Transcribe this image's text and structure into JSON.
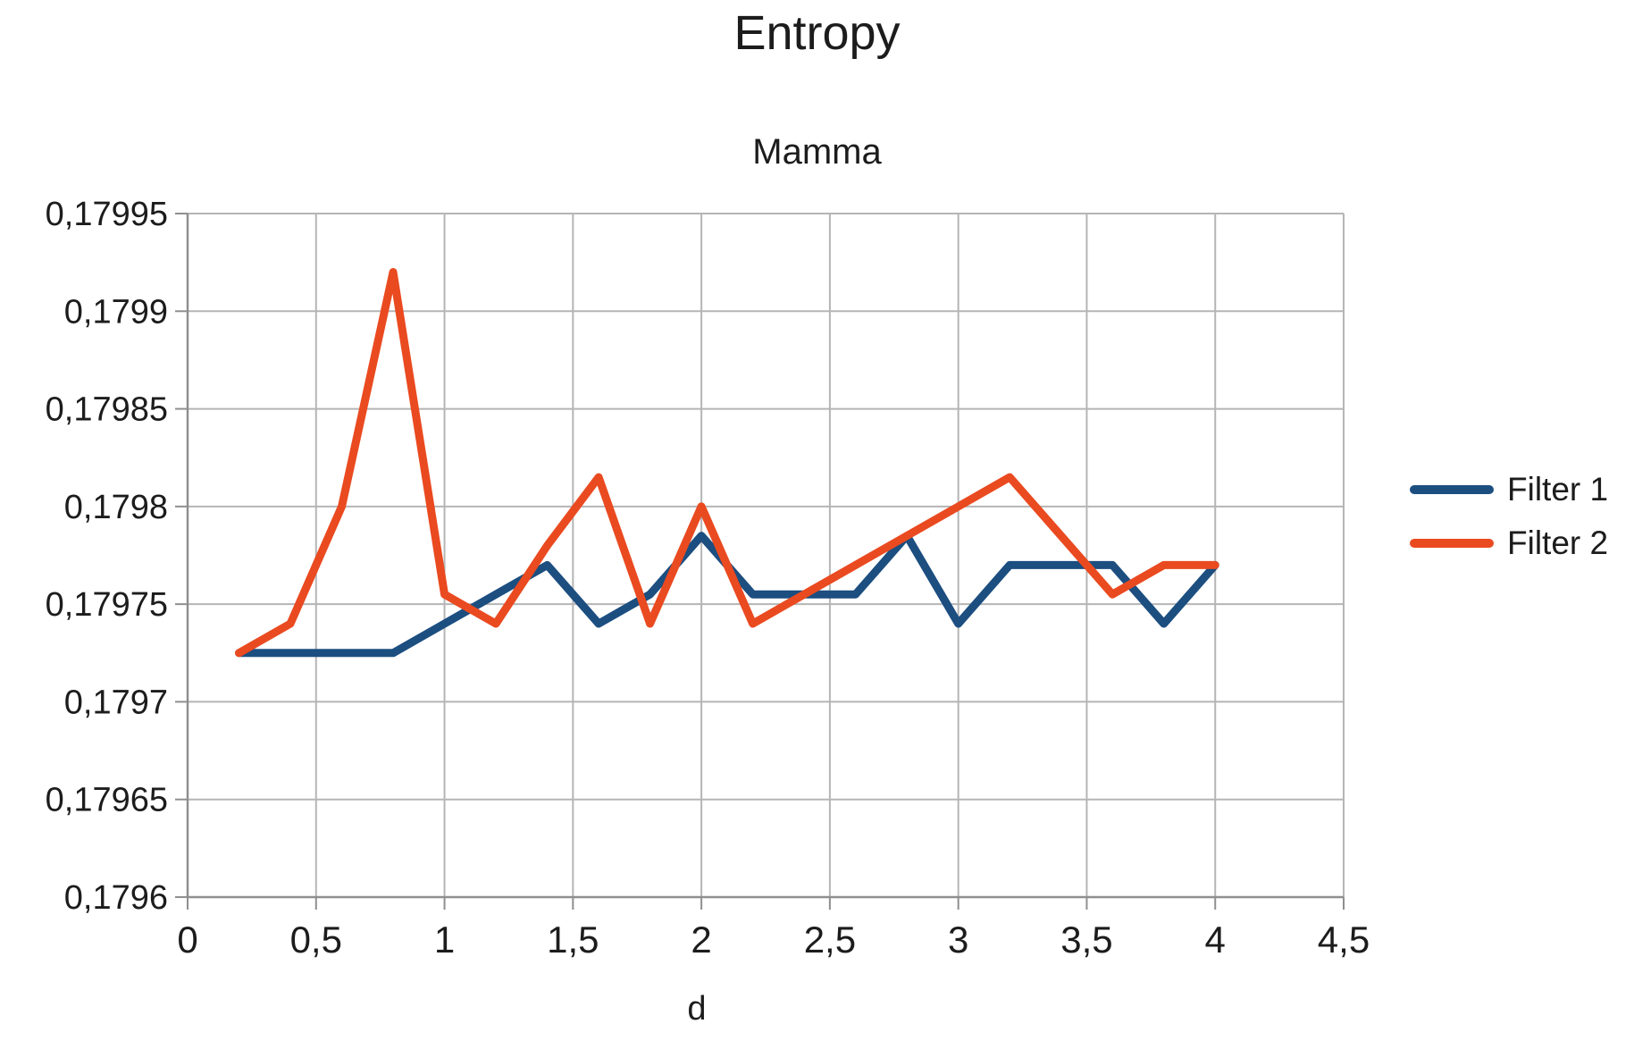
{
  "header": {
    "title": "Entropy",
    "subtitle": "Mamma"
  },
  "chart_data": {
    "type": "line",
    "title": "Entropy",
    "subtitle": "Mamma",
    "xlabel": "d",
    "ylabel": "",
    "xlim": [
      0,
      4.5
    ],
    "ylim": [
      0.1796,
      0.17995
    ],
    "grid": true,
    "legend_position": "right",
    "decimal_separator": ",",
    "x": [
      0.2,
      0.4,
      0.6,
      0.8,
      1.0,
      1.2,
      1.4,
      1.6,
      1.8,
      2.0,
      2.2,
      2.4,
      2.6,
      2.8,
      3.0,
      3.2,
      3.4,
      3.6,
      3.8,
      4.0
    ],
    "series": [
      {
        "name": "Filter 1",
        "color": "#1C4E80",
        "values": [
          0.179725,
          0.179725,
          0.179725,
          0.179725,
          0.17974,
          0.179755,
          0.17977,
          0.17974,
          0.179755,
          0.179785,
          0.179755,
          0.179755,
          0.179755,
          0.179785,
          0.17974,
          0.17977,
          0.17977,
          0.17977,
          0.17974,
          0.17977
        ]
      },
      {
        "name": "Filter 2",
        "color": "#EA4A20",
        "values": [
          0.179725,
          0.17974,
          0.1798,
          0.17992,
          0.179755,
          0.17974,
          0.17978,
          0.179815,
          0.17974,
          0.1798,
          0.17974,
          0.179755,
          0.17977,
          0.179785,
          0.1798,
          0.179815,
          0.179785,
          0.179755,
          0.17977,
          0.17977
        ]
      }
    ],
    "x_ticks": {
      "values": [
        0,
        0.5,
        1,
        1.5,
        2,
        2.5,
        3,
        3.5,
        4,
        4.5
      ],
      "labels": [
        "0",
        "0,5",
        "1",
        "1,5",
        "2",
        "2,5",
        "3",
        "3,5",
        "4",
        "4,5"
      ]
    },
    "y_ticks": {
      "values": [
        0.1796,
        0.17965,
        0.1797,
        0.17975,
        0.1798,
        0.17985,
        0.1799,
        0.17995
      ],
      "labels": [
        "0,1796",
        "0,17965",
        "0,1797",
        "0,17975",
        "0,1798",
        "0,17985",
        "0,1799",
        "0,17995"
      ]
    }
  },
  "colors": {
    "grid": "#b5b5b5",
    "axis": "#8f8f8f",
    "text": "#1c1c1c"
  }
}
